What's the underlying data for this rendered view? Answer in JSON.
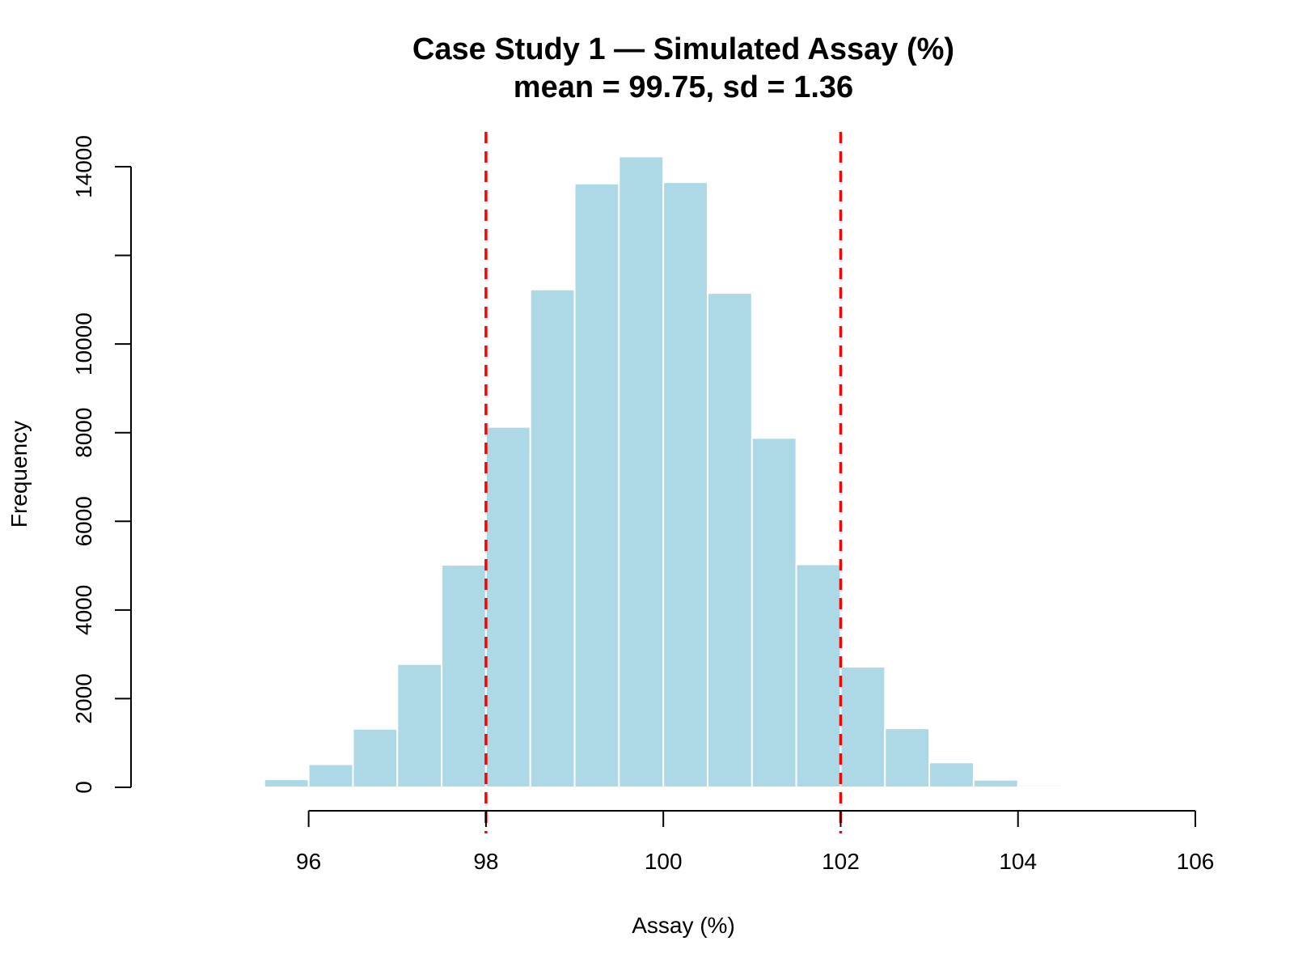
{
  "chart_data": {
    "type": "bar",
    "title": "Case Study 1 — Simulated Assay (%)",
    "subtitle": "mean = 99.75, sd = 1.36",
    "xlabel": "Assay (%)",
    "ylabel": "Frequency",
    "xlim": [
      95,
      106
    ],
    "ylim": [
      0,
      14000
    ],
    "x_ticks": [
      96,
      98,
      100,
      102,
      104,
      106
    ],
    "y_ticks": [
      0,
      2000,
      4000,
      6000,
      8000,
      10000,
      12000,
      14000
    ],
    "y_tick_labels": [
      "0",
      "2000",
      "4000",
      "6000",
      "8000",
      "10000",
      "",
      "14000"
    ],
    "bin_width": 0.5,
    "bin_starts": [
      95.0,
      95.5,
      96.0,
      96.5,
      97.0,
      97.5,
      98.0,
      98.5,
      99.0,
      99.5,
      100.0,
      100.5,
      101.0,
      101.5,
      102.0,
      102.5,
      103.0,
      103.5,
      104.0
    ],
    "values": [
      20,
      180,
      520,
      1320,
      2780,
      5020,
      8130,
      11230,
      13620,
      14230,
      13650,
      11150,
      7880,
      5030,
      2720,
      1330,
      560,
      170,
      40
    ],
    "reference_lines": [
      98,
      102
    ],
    "bar_color": "#add8e6",
    "bar_edge_color": "#ffffff",
    "reference_line_color": "#ff0000",
    "grid": false
  }
}
